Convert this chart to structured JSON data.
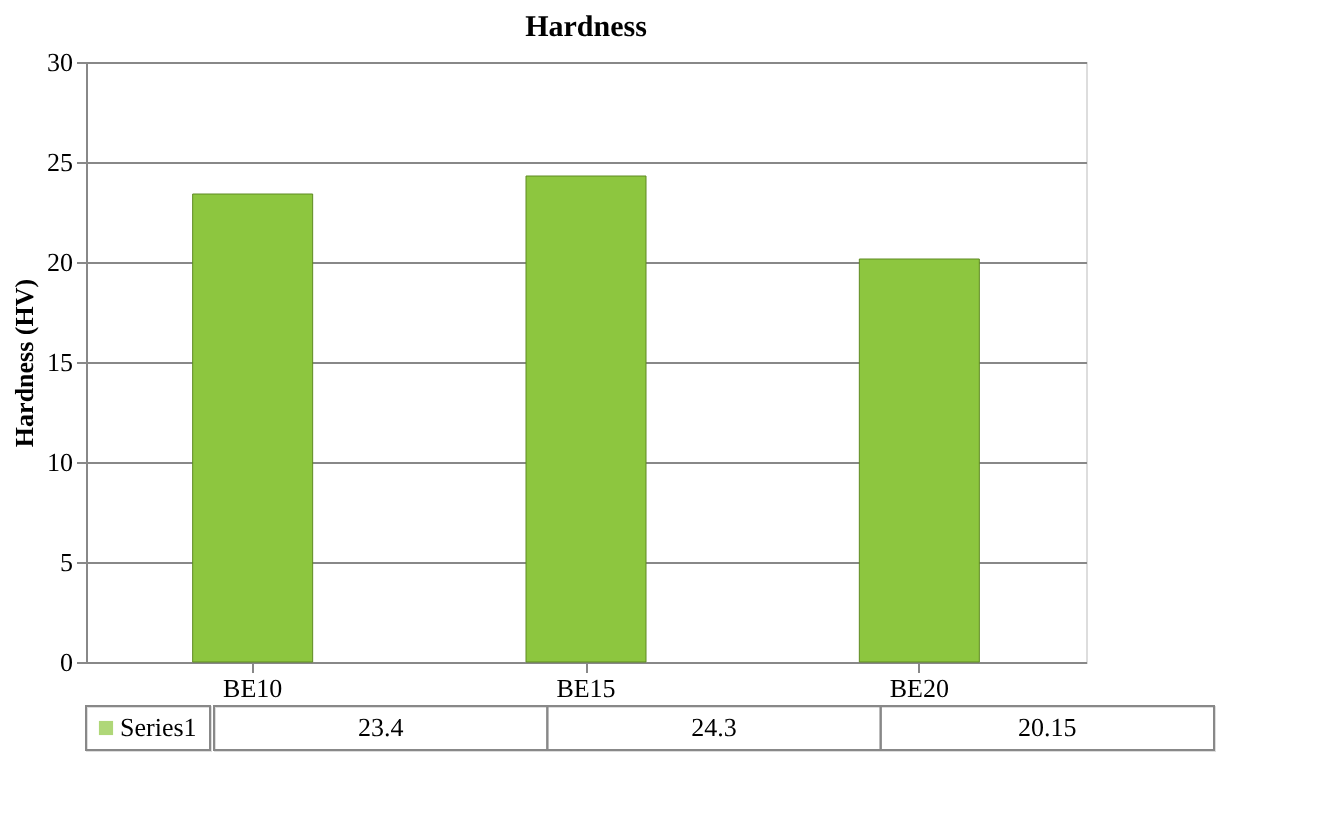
{
  "chart_data": {
    "type": "bar",
    "title": "Hardness",
    "ylabel": "Hardness (HV)",
    "categories": [
      "BE10",
      "BE15",
      "BE20"
    ],
    "series": [
      {
        "name": "Series1",
        "color": "#8dc63f",
        "values": [
          23.4,
          24.3,
          20.15
        ]
      }
    ],
    "ylim": [
      0,
      30
    ],
    "yticks": [
      0,
      5,
      10,
      15,
      20,
      25,
      30
    ],
    "grid": "y",
    "legend": "bottom left",
    "data_labels": true
  }
}
